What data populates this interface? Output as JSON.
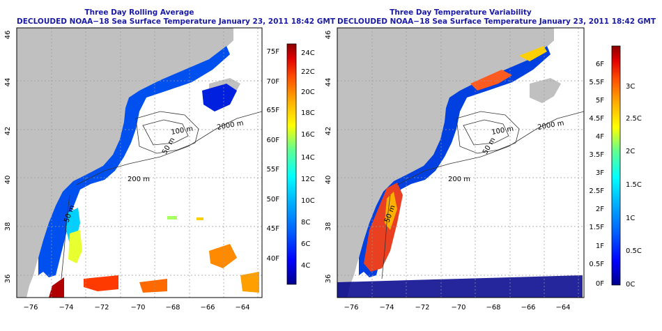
{
  "panels": [
    {
      "title": "Three Day Rolling Average",
      "subtitle": "DECLOUDED NOAA−18 Sea Surface Temperature January 23, 2011 18:42 GMT",
      "lon_ticks": [
        "−76",
        "−74",
        "−72",
        "−70",
        "−68",
        "−66",
        "−64"
      ],
      "lat_ticks": [
        "36",
        "38",
        "40",
        "42",
        "44",
        "46"
      ],
      "contours": [
        "100 m",
        "50 m",
        "200 m",
        "2000 m",
        "50 m"
      ],
      "colorbar": {
        "labels_f": [
          "75F",
          "70F",
          "65F",
          "60F",
          "55F",
          "50F",
          "45F",
          "40F"
        ],
        "labels_c": [
          "24C",
          "22C",
          "20C",
          "18C",
          "16C",
          "14C",
          "12C",
          "10C",
          "8C",
          "6C",
          "4C"
        ],
        "palette": [
          "#00008b",
          "#0000ff",
          "#0060ff",
          "#00b0ff",
          "#00ffff",
          "#60ff90",
          "#ffff00",
          "#ffb000",
          "#ff5000",
          "#e00000",
          "#8b0000"
        ]
      }
    },
    {
      "title": "Three Day Temperature Variability",
      "subtitle": "DECLOUDED NOAA−18 Sea Surface Temperature January 23, 2011 18:42 GMT",
      "lon_ticks": [
        "−76",
        "−74",
        "−72",
        "−70",
        "−68",
        "−66",
        "−64"
      ],
      "lat_ticks": [
        "36",
        "38",
        "40",
        "42",
        "44",
        "46"
      ],
      "contours": [
        "100 m",
        "50 m",
        "200 m",
        "2000 m",
        "50 m"
      ],
      "colorbar": {
        "labels_f": [
          "6F",
          "5.5F",
          "5F",
          "4.5F",
          "4F",
          "3.5F",
          "3F",
          "2.5F",
          "2F",
          "1.5F",
          "1F",
          "0.5F",
          "0F"
        ],
        "labels_c": [
          "3C",
          "2.5C",
          "2C",
          "1.5C",
          "1C",
          "0.5C",
          "0C"
        ],
        "palette": [
          "#00008b",
          "#0000ff",
          "#0060ff",
          "#00b0ff",
          "#00ffff",
          "#60ff90",
          "#ffff00",
          "#ffb000",
          "#ff5000",
          "#e00000",
          "#8b0000"
        ]
      }
    }
  ]
}
